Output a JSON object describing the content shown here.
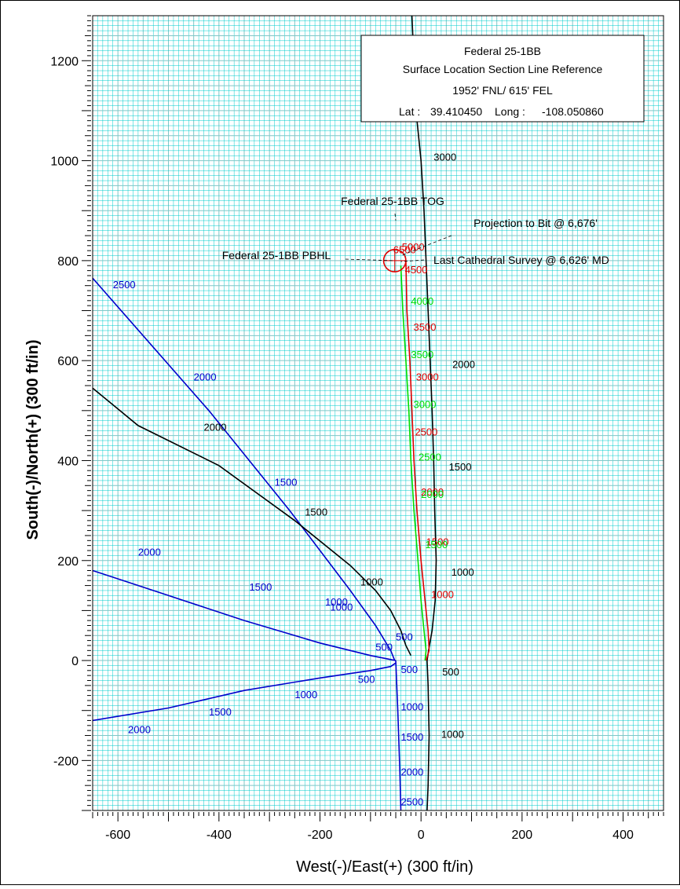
{
  "chart_data": {
    "type": "line",
    "xlabel": "West(-)/East(+) (300 ft/in)",
    "ylabel": "South(-)/North(+) (300 ft/in)",
    "xlim": [
      -650,
      480
    ],
    "ylim": [
      -300,
      1290
    ],
    "xticks": [
      -600,
      -400,
      -200,
      0,
      200,
      400
    ],
    "yticks": [
      -200,
      0,
      200,
      400,
      600,
      800,
      1000,
      1200
    ],
    "grid": true,
    "legend": "none",
    "colors": {
      "black": "#000000",
      "blue": "#0000cc",
      "red": "#dd0000",
      "green": "#00dd00",
      "grid": "#00cccc"
    },
    "info_box": {
      "title": "Federal 25-1BB",
      "subtitle": "Surface Location Section Line Reference",
      "location": "1952' FNL/ 615' FEL",
      "lat_label": "Lat :",
      "lat": "39.410450",
      "long_label": "Long :",
      "long": "-108.050860"
    },
    "annotations": [
      {
        "text": "Federal 25-1BB TOG",
        "x": -50,
        "y": 880
      },
      {
        "text": "Projection to Bit @ 6,676'",
        "x": -40,
        "y": 810
      },
      {
        "text": "Federal 25-1BB PBHL",
        "x": -55,
        "y": 800
      },
      {
        "text": "Last Cathedral Survey @ 6,626' MD",
        "x": -40,
        "y": 798
      }
    ],
    "target": {
      "x": -52,
      "y": 800,
      "radius": 22
    },
    "series": [
      {
        "color": "black",
        "points": [
          [
            -18,
            1290
          ],
          [
            -10,
            1100
          ],
          [
            0,
            1000
          ],
          [
            6,
            900
          ],
          [
            10,
            800
          ],
          [
            14,
            700
          ],
          [
            18,
            600
          ],
          [
            22,
            500
          ],
          [
            25,
            400
          ],
          [
            27,
            300
          ],
          [
            30,
            200
          ],
          [
            28,
            120
          ],
          [
            22,
            60
          ],
          [
            15,
            20
          ],
          [
            12,
            0
          ],
          [
            14,
            -50
          ],
          [
            16,
            -150
          ],
          [
            14,
            -250
          ],
          [
            12,
            -300
          ]
        ],
        "labels": [
          {
            "text": "3000",
            "x": 25,
            "y": 1000
          },
          {
            "text": "2000",
            "x": 62,
            "y": 585
          },
          {
            "text": "1500",
            "x": 55,
            "y": 380
          },
          {
            "text": "1000",
            "x": 60,
            "y": 170
          },
          {
            "text": "500",
            "x": 42,
            "y": -30
          },
          {
            "text": "1000",
            "x": 40,
            "y": -155
          }
        ]
      },
      {
        "color": "red",
        "points": [
          [
            -30,
            800
          ],
          [
            -28,
            700
          ],
          [
            -22,
            600
          ],
          [
            -18,
            500
          ],
          [
            -14,
            400
          ],
          [
            -8,
            300
          ],
          [
            0,
            200
          ],
          [
            8,
            120
          ],
          [
            14,
            60
          ],
          [
            16,
            20
          ],
          [
            10,
            0
          ]
        ],
        "labels": [
          {
            "text": "6500",
            "x": -55,
            "y": 815
          },
          {
            "text": "5000",
            "x": -38,
            "y": 820
          },
          {
            "text": "4500",
            "x": -32,
            "y": 775
          },
          {
            "text": "3500",
            "x": -15,
            "y": 660
          },
          {
            "text": "3000",
            "x": -10,
            "y": 560
          },
          {
            "text": "2500",
            "x": -12,
            "y": 450
          },
          {
            "text": "2000",
            "x": 0,
            "y": 330
          },
          {
            "text": "1500",
            "x": 10,
            "y": 230
          },
          {
            "text": "1000",
            "x": 20,
            "y": 125
          }
        ]
      },
      {
        "color": "green",
        "points": [
          [
            -40,
            790
          ],
          [
            -36,
            700
          ],
          [
            -30,
            600
          ],
          [
            -24,
            500
          ],
          [
            -20,
            400
          ],
          [
            -14,
            300
          ],
          [
            -6,
            200
          ],
          [
            0,
            120
          ],
          [
            6,
            60
          ],
          [
            10,
            20
          ],
          [
            8,
            0
          ]
        ],
        "labels": [
          {
            "text": "4000",
            "x": -20,
            "y": 712
          },
          {
            "text": "3500",
            "x": -20,
            "y": 605
          },
          {
            "text": "3000",
            "x": -15,
            "y": 505
          },
          {
            "text": "2500",
            "x": -5,
            "y": 400
          },
          {
            "text": "2000",
            "x": 0,
            "y": 325
          },
          {
            "text": "1500",
            "x": 8,
            "y": 225
          }
        ]
      },
      {
        "color": "blue",
        "points": [
          [
            -650,
            765
          ],
          [
            -420,
            500
          ],
          [
            -260,
            300
          ],
          [
            -140,
            140
          ],
          [
            -90,
            70
          ],
          [
            -60,
            20
          ],
          [
            -52,
            0
          ]
        ],
        "labels": [
          {
            "text": "2500",
            "x": -610,
            "y": 745
          },
          {
            "text": "2000",
            "x": -450,
            "y": 560
          },
          {
            "text": "1500",
            "x": -290,
            "y": 350
          },
          {
            "text": "1000",
            "x": -190,
            "y": 110
          },
          {
            "text": "500",
            "x": -90,
            "y": 20
          }
        ]
      },
      {
        "color": "black",
        "points": [
          [
            -650,
            545
          ],
          [
            -560,
            470
          ],
          [
            -400,
            390
          ],
          [
            -250,
            280
          ],
          [
            -140,
            190
          ],
          [
            -90,
            140
          ],
          [
            -60,
            100
          ],
          [
            -40,
            60
          ],
          [
            -30,
            30
          ],
          [
            -20,
            10
          ]
        ],
        "labels": [
          {
            "text": "2000",
            "x": -430,
            "y": 460
          },
          {
            "text": "1500",
            "x": -230,
            "y": 290
          },
          {
            "text": "1000",
            "x": -120,
            "y": 150
          }
        ]
      },
      {
        "color": "blue",
        "points": [
          [
            -650,
            180
          ],
          [
            -500,
            130
          ],
          [
            -350,
            80
          ],
          [
            -200,
            35
          ],
          [
            -100,
            10
          ],
          [
            -60,
            2
          ],
          [
            -50,
            0
          ]
        ],
        "labels": [
          {
            "text": "2000",
            "x": -560,
            "y": 210
          },
          {
            "text": "1500",
            "x": -340,
            "y": 140
          },
          {
            "text": "1000",
            "x": -180,
            "y": 100
          },
          {
            "text": "500",
            "x": -50,
            "y": 40
          }
        ]
      },
      {
        "color": "blue",
        "points": [
          [
            -650,
            -120
          ],
          [
            -500,
            -95
          ],
          [
            -350,
            -60
          ],
          [
            -200,
            -35
          ],
          [
            -100,
            -20
          ],
          [
            -60,
            -12
          ],
          [
            -50,
            -5
          ]
        ],
        "labels": [
          {
            "text": "2000",
            "x": -580,
            "y": -145
          },
          {
            "text": "1500",
            "x": -420,
            "y": -110
          },
          {
            "text": "1000",
            "x": -250,
            "y": -75
          },
          {
            "text": "500",
            "x": -125,
            "y": -45
          }
        ]
      },
      {
        "color": "blue",
        "points": [
          [
            -50,
            0
          ],
          [
            -48,
            -50
          ],
          [
            -46,
            -100
          ],
          [
            -44,
            -160
          ],
          [
            -42,
            -220
          ],
          [
            -40,
            -300
          ]
        ],
        "labels": [
          {
            "text": "500",
            "x": -40,
            "y": -25
          },
          {
            "text": "1000",
            "x": -40,
            "y": -100
          },
          {
            "text": "1500",
            "x": -40,
            "y": -160
          },
          {
            "text": "2000",
            "x": -40,
            "y": -230
          },
          {
            "text": "2500",
            "x": -40,
            "y": -290
          }
        ]
      }
    ]
  }
}
